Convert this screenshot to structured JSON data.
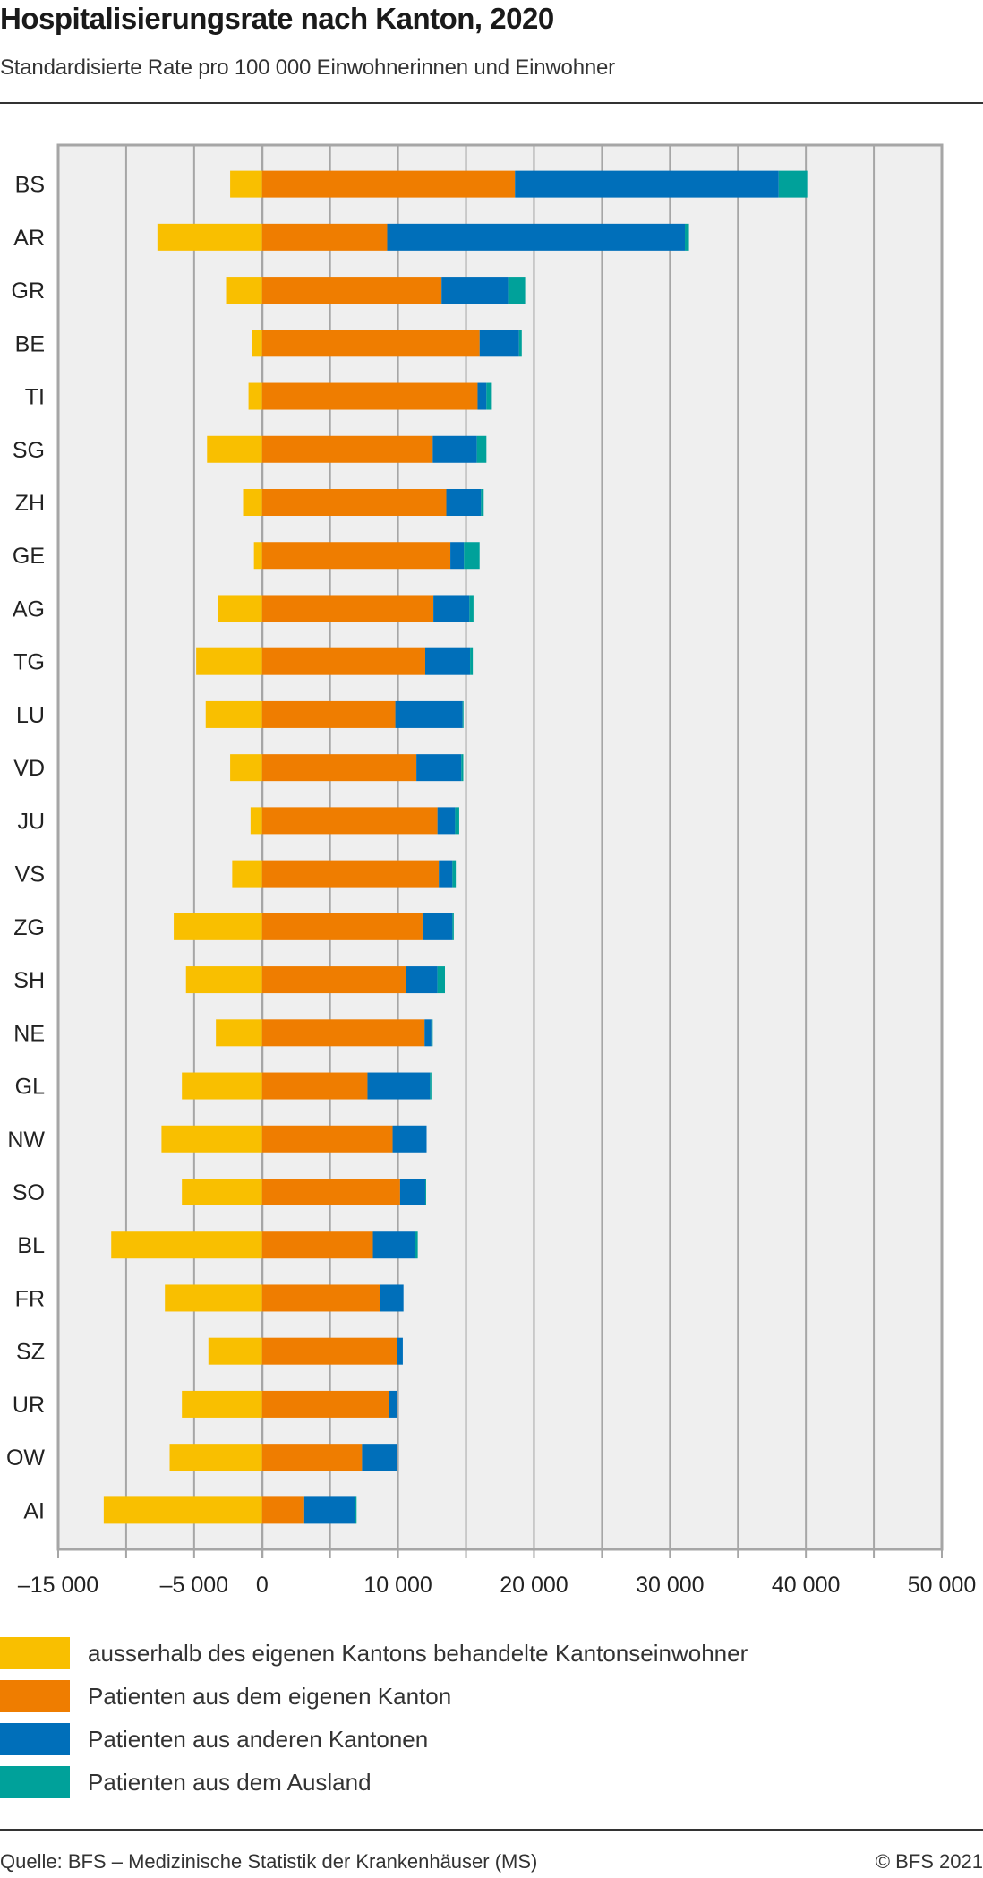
{
  "header": {
    "title": "Hospitalisierungsrate nach Kanton, 2020",
    "subtitle": "Standardisierte Rate pro 100 000 Einwohnerinnen und Einwohner"
  },
  "footer": {
    "source": "Quelle: BFS – Medizinische Statistik der Krankenhäuser (MS)",
    "copyright": "© BFS 2021"
  },
  "chart_data": {
    "type": "bar",
    "orientation": "horizontal",
    "stacked": true,
    "title": "Hospitalisierungsrate nach Kanton, 2020",
    "subtitle": "Standardisierte Rate pro 100 000 Einwohnerinnen und Einwohner",
    "xlabel": "",
    "ylabel": "",
    "xlim": [
      -15000,
      50000
    ],
    "grid_step": 5000,
    "grid": true,
    "x_tick_labels": [
      {
        "value": -15000,
        "label": "–15 000"
      },
      {
        "value": -5000,
        "label": "–5 000"
      },
      {
        "value": 0,
        "label": "0"
      },
      {
        "value": 10000,
        "label": "10 000"
      },
      {
        "value": 20000,
        "label": "20 000"
      },
      {
        "value": 30000,
        "label": "30 000"
      },
      {
        "value": 40000,
        "label": "40 000"
      },
      {
        "value": 50000,
        "label": "50 000"
      }
    ],
    "legend_position": "bottom",
    "categories": [
      "BS",
      "AR",
      "GR",
      "BE",
      "TI",
      "SG",
      "ZH",
      "GE",
      "AG",
      "TG",
      "LU",
      "VD",
      "JU",
      "VS",
      "ZG",
      "SH",
      "NE",
      "GL",
      "NW",
      "SO",
      "BL",
      "FR",
      "SZ",
      "UR",
      "OW",
      "AI"
    ],
    "series": [
      {
        "name": "ausserhalb des eigenen Kantons behandelte Kantonseinwohner",
        "color": "#f9bf00",
        "values": [
          -2350,
          -7700,
          -2650,
          -750,
          -1000,
          -4050,
          -1400,
          -600,
          -3250,
          -4850,
          -4150,
          -2350,
          -850,
          -2200,
          -6500,
          -5600,
          -3400,
          -5900,
          -7400,
          -5900,
          -11100,
          -7150,
          -3950,
          -5900,
          -6800,
          -11650
        ]
      },
      {
        "name": "Patienten aus dem eigenen Kanton",
        "color": "#ef7d00",
        "values": [
          18600,
          9200,
          13200,
          16000,
          15850,
          12550,
          13550,
          13850,
          12600,
          12000,
          9800,
          11350,
          12900,
          13000,
          11800,
          10600,
          11950,
          7750,
          9600,
          10150,
          8150,
          8700,
          9900,
          9300,
          7350,
          3100
        ]
      },
      {
        "name": "Patienten aus anderen Kantonen",
        "color": "#006fba",
        "values": [
          19400,
          21900,
          4900,
          2900,
          650,
          3250,
          2550,
          1000,
          2650,
          3300,
          4950,
          3300,
          1300,
          1000,
          2200,
          2300,
          500,
          4600,
          2500,
          1850,
          3100,
          1700,
          450,
          650,
          2600,
          3750
        ]
      },
      {
        "name": "Patienten aus dem Ausland",
        "color": "#00a19a",
        "values": [
          2100,
          300,
          1250,
          200,
          400,
          700,
          200,
          1150,
          300,
          200,
          50,
          150,
          300,
          250,
          100,
          550,
          100,
          100,
          0,
          50,
          200,
          0,
          0,
          0,
          0,
          100
        ]
      }
    ]
  }
}
